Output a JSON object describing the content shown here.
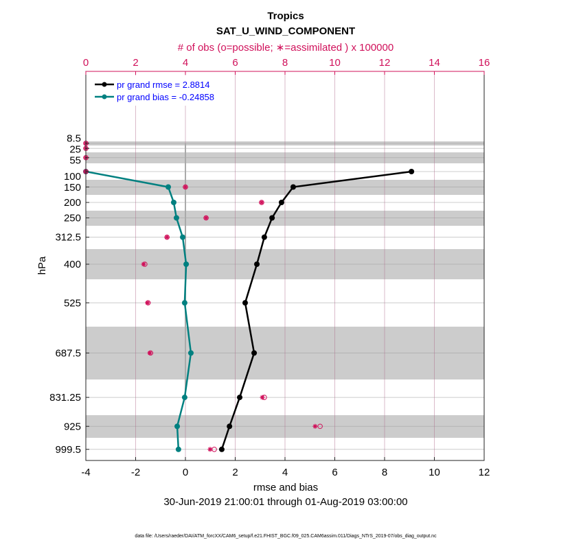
{
  "chart_data": {
    "type": "line",
    "title": "Tropics",
    "subtitle": "SAT_U_WIND_COMPONENT",
    "top_axis_label": "# of obs (o=possible; ∗=assimilated ) x 100000",
    "xlabel": "rmse and bias",
    "ylabel": "hPa",
    "date_range": "30-Jun-2019 21:00:01 through 01-Aug-2019 03:00:00",
    "footer": "data file: /Users/raeder/DAI/ATM_forcXX/CAM6_setup/f.e21.FHIST_BGC.f09_025.CAM6assim.011/Diags_NTrS_2019-07/obs_diag_output.nc",
    "xlim": [
      -4,
      12
    ],
    "xticks": [
      "-4",
      "-2",
      "0",
      "2",
      "4",
      "6",
      "8",
      "10",
      "12"
    ],
    "top_xlim": [
      0,
      16
    ],
    "top_xticks": [
      "0",
      "2",
      "4",
      "6",
      "8",
      "10",
      "12",
      "14",
      "16"
    ],
    "levels": [
      8.5,
      25,
      55,
      100,
      150,
      200,
      250,
      312.5,
      400,
      525,
      687.5,
      831.25,
      925,
      999.5
    ],
    "level_labels": [
      "8.5",
      "25",
      "55",
      "100",
      "150",
      "200",
      "250",
      "312.5",
      "400",
      "525",
      "687.5",
      "831.25",
      "925",
      "999.5"
    ],
    "series": [
      {
        "name": "pr grand rmse = 2.8814",
        "color": "#000000",
        "levels": [
          100,
          150,
          200,
          250,
          312.5,
          400,
          525,
          687.5,
          831.25,
          925,
          999.5
        ],
        "values": [
          9.08,
          4.33,
          3.86,
          3.48,
          3.17,
          2.87,
          2.4,
          2.76,
          2.18,
          1.77,
          1.46
        ]
      },
      {
        "name": "pr grand bias = -0.24858",
        "color": "#008080",
        "levels": [
          100,
          150,
          200,
          250,
          312.5,
          400,
          525,
          687.5,
          831.25,
          925,
          999.5
        ],
        "values": [
          -4.0,
          -0.69,
          -0.47,
          -0.36,
          -0.11,
          0.03,
          -0.03,
          0.22,
          -0.03,
          -0.33,
          -0.28
        ]
      }
    ],
    "obs_possible": [
      0,
      0,
      0,
      0,
      4.0,
      7.06,
      4.83,
      3.26,
      2.37,
      2.5,
      2.6,
      7.17,
      9.41,
      5.16
    ],
    "obs_assimilated": [
      0,
      0,
      0,
      0,
      4.0,
      7.06,
      4.83,
      3.26,
      2.32,
      2.48,
      2.57,
      7.09,
      9.21,
      4.99
    ],
    "legend_position": "top-left",
    "grid": true,
    "colors": {
      "obs": "#d0105a",
      "legend_text": "#0000ff",
      "band": "#cccccc"
    }
  }
}
